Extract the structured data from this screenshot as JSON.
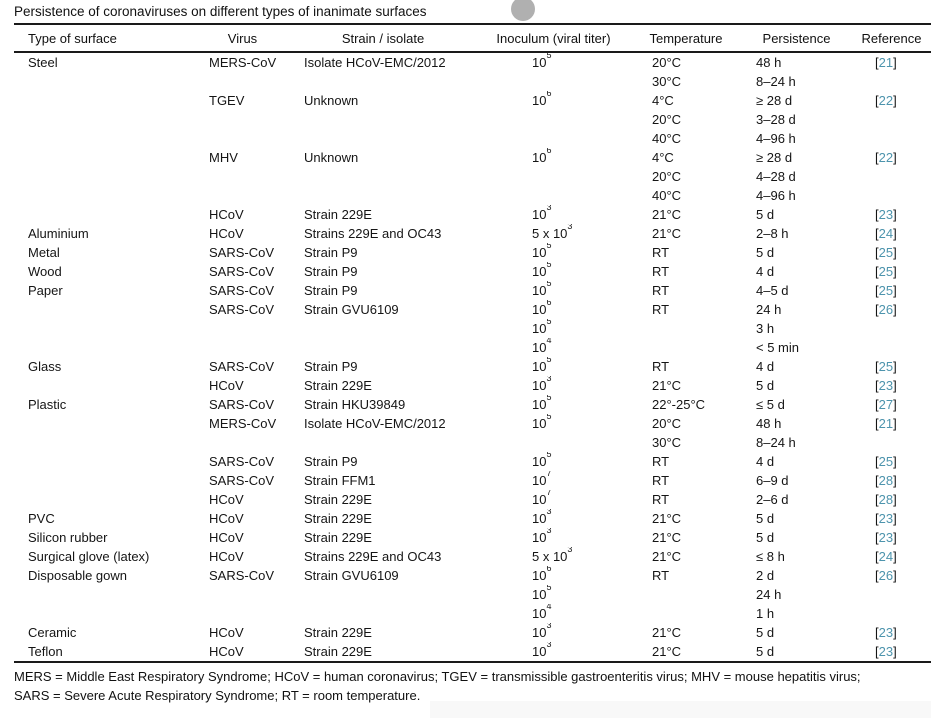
{
  "page": {
    "title": "Persistence of coronaviruses on different types of inanimate surfaces"
  },
  "table": {
    "columns": [
      "surface",
      "virus",
      "strain",
      "inoculum",
      "temperature",
      "persistence",
      "reference"
    ],
    "headers": [
      "Type of surface",
      "Virus",
      "Strain / isolate",
      "Inoculum (viral titer)",
      "Temperature",
      "Persistence",
      "Reference"
    ],
    "rows": [
      [
        "Steel",
        "MERS-CoV",
        "Isolate HCoV-EMC/2012",
        "10^5",
        "20°C",
        "48 h",
        "21"
      ],
      [
        "",
        "",
        "",
        "",
        "30°C",
        "8–24 h",
        ""
      ],
      [
        "",
        "TGEV",
        "Unknown",
        "10^6",
        "4°C",
        "≥ 28 d",
        "22"
      ],
      [
        "",
        "",
        "",
        "",
        "20°C",
        "3–28 d",
        ""
      ],
      [
        "",
        "",
        "",
        "",
        "40°C",
        "4–96 h",
        ""
      ],
      [
        "",
        "MHV",
        "Unknown",
        "10^6",
        "4°C",
        "≥ 28 d",
        "22"
      ],
      [
        "",
        "",
        "",
        "",
        "20°C",
        "4–28 d",
        ""
      ],
      [
        "",
        "",
        "",
        "",
        "40°C",
        "4–96 h",
        ""
      ],
      [
        "",
        "HCoV",
        "Strain 229E",
        "10^3",
        "21°C",
        "5 d",
        "23"
      ],
      [
        "Aluminium",
        "HCoV",
        "Strains 229E and OC43",
        "5 x 10^3",
        "21°C",
        "2–8 h",
        "24"
      ],
      [
        "Metal",
        "SARS-CoV",
        "Strain P9",
        "10^5",
        "RT",
        "5 d",
        "25"
      ],
      [
        "Wood",
        "SARS-CoV",
        "Strain P9",
        "10^5",
        "RT",
        "4 d",
        "25"
      ],
      [
        "Paper",
        "SARS-CoV",
        "Strain P9",
        "10^5",
        "RT",
        "4–5 d",
        "25"
      ],
      [
        "",
        "SARS-CoV",
        "Strain GVU6109",
        "10^6",
        "RT",
        "24 h",
        "26"
      ],
      [
        "",
        "",
        "",
        "10^5",
        "",
        "3 h",
        ""
      ],
      [
        "",
        "",
        "",
        "10^4",
        "",
        "< 5 min",
        ""
      ],
      [
        "Glass",
        "SARS-CoV",
        "Strain P9",
        "10^5",
        "RT",
        "4 d",
        "25"
      ],
      [
        "",
        "HCoV",
        "Strain 229E",
        "10^3",
        "21°C",
        "5 d",
        "23"
      ],
      [
        "Plastic",
        "SARS-CoV",
        "Strain HKU39849",
        "10^5",
        "22°-25°C",
        "≤ 5 d",
        "27"
      ],
      [
        "",
        "MERS-CoV",
        "Isolate HCoV-EMC/2012",
        "10^5",
        "20°C",
        "48 h",
        "21"
      ],
      [
        "",
        "",
        "",
        "",
        "30°C",
        "8–24 h",
        ""
      ],
      [
        "",
        "SARS-CoV",
        "Strain P9",
        "10^5",
        "RT",
        "4 d",
        "25"
      ],
      [
        "",
        "SARS-CoV",
        "Strain FFM1",
        "10^7",
        "RT",
        "6–9 d",
        "28"
      ],
      [
        "",
        "HCoV",
        "Strain 229E",
        "10^7",
        "RT",
        "2–6 d",
        "28"
      ],
      [
        "PVC",
        "HCoV",
        "Strain 229E",
        "10^3",
        "21°C",
        "5 d",
        "23"
      ],
      [
        "Silicon rubber",
        "HCoV",
        "Strain 229E",
        "10^3",
        "21°C",
        "5 d",
        "23"
      ],
      [
        "Surgical glove (latex)",
        "HCoV",
        "Strains 229E and OC43",
        "5 x 10^3",
        "21°C",
        "≤ 8 h",
        "24"
      ],
      [
        "Disposable gown",
        "SARS-CoV",
        "Strain GVU6109",
        "10^6",
        "RT",
        "2 d",
        "26"
      ],
      [
        "",
        "",
        "",
        "10^5",
        "",
        "24 h",
        ""
      ],
      [
        "",
        "",
        "",
        "10^4",
        "",
        "1 h",
        ""
      ],
      [
        "Ceramic",
        "HCoV",
        "Strain 229E",
        "10^3",
        "21°C",
        "5 d",
        "23"
      ],
      [
        "Teflon",
        "HCoV",
        "Strain 229E",
        "10^3",
        "21°C",
        "5 d",
        "23"
      ]
    ]
  },
  "footnotes": {
    "line1": "MERS = Middle East Respiratory Syndrome; HCoV = human coronavirus; TGEV = transmissible gastroenteritis virus; MHV = mouse hepatitis virus;",
    "line2": "SARS = Severe Acute Respiratory Syndrome; RT = room temperature."
  },
  "colors": {
    "reference_number": "#4d94ad",
    "text": "#1b1b1b",
    "rule": "#1a1a1a",
    "dot": "#b0b0b0"
  }
}
